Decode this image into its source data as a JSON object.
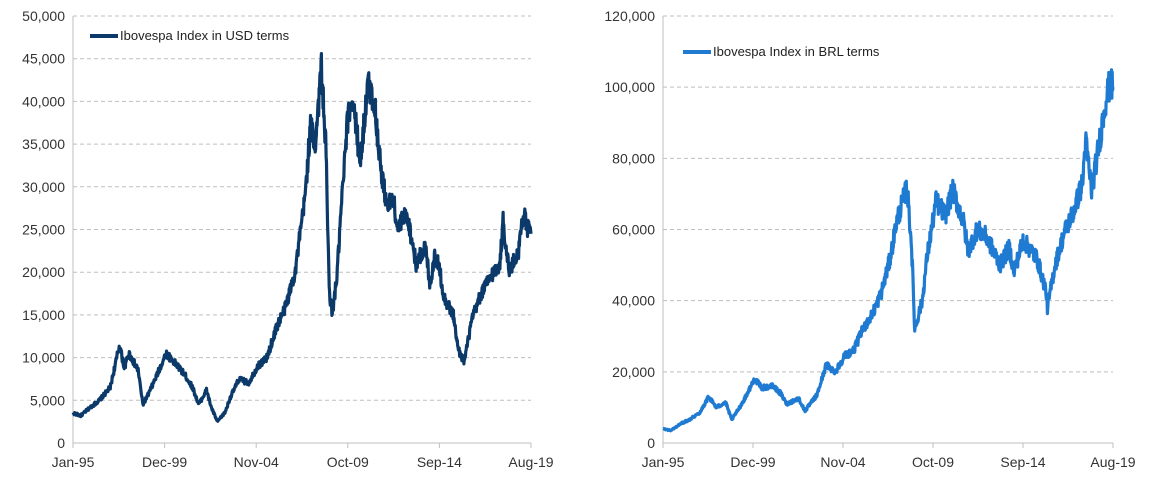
{
  "charts": [
    {
      "type": "line",
      "title": "",
      "xlabel": "",
      "ylabel": "",
      "legend_position": "top-left",
      "grid": true,
      "series_color": "#0b3a6a",
      "y_ticks": [
        "0",
        "5,000",
        "10,000",
        "15,000",
        "20,000",
        "25,000",
        "30,000",
        "35,000",
        "40,000",
        "45,000",
        "50,000"
      ],
      "x_ticks": [
        "Jan-95",
        "Dec-99",
        "Nov-04",
        "Oct-09",
        "Sep-14",
        "Aug-19"
      ],
      "ylim": [
        0,
        50000
      ],
      "series": [
        {
          "name": "Ibovespa Index in USD terms",
          "x": [
            "1995-01",
            "1995-06",
            "1996-01",
            "1996-06",
            "1997-01",
            "1997-04",
            "1997-07",
            "1997-10",
            "1998-01",
            "1998-04",
            "1998-07",
            "1998-10",
            "1999-01",
            "1999-06",
            "2000-01",
            "2000-06",
            "2001-01",
            "2001-06",
            "2001-10",
            "2002-03",
            "2002-06",
            "2002-10",
            "2003-03",
            "2003-06",
            "2003-12",
            "2004-06",
            "2004-12",
            "2005-06",
            "2005-12",
            "2006-06",
            "2006-12",
            "2007-06",
            "2007-10",
            "2008-01",
            "2008-05",
            "2008-08",
            "2008-10",
            "2008-12",
            "2009-03",
            "2009-06",
            "2009-10",
            "2010-01",
            "2010-06",
            "2010-11",
            "2011-03",
            "2011-08",
            "2011-12",
            "2012-03",
            "2012-06",
            "2012-12",
            "2013-06",
            "2013-12",
            "2014-03",
            "2014-06",
            "2014-09",
            "2014-12",
            "2015-06",
            "2015-09",
            "2016-01",
            "2016-06",
            "2016-12",
            "2017-06",
            "2017-12",
            "2018-02",
            "2018-06",
            "2018-12",
            "2019-03",
            "2019-06",
            "2019-08"
          ],
          "values": [
            3500,
            3200,
            4300,
            5000,
            6500,
            9000,
            11500,
            8800,
            10500,
            9500,
            8500,
            4500,
            5500,
            7500,
            10500,
            9500,
            8000,
            6500,
            4500,
            6200,
            4200,
            2500,
            3600,
            5200,
            7500,
            7000,
            9000,
            10000,
            13500,
            16000,
            20000,
            28000,
            37000,
            35000,
            44000,
            34000,
            18000,
            15000,
            19500,
            28000,
            38000,
            40500,
            33000,
            42000,
            40000,
            31000,
            27500,
            29000,
            25000,
            27000,
            21000,
            23000,
            18500,
            22000,
            20500,
            17000,
            15000,
            11000,
            9500,
            14500,
            17500,
            19500,
            21000,
            26000,
            20000,
            22500,
            27000,
            25000,
            24500
          ]
        }
      ]
    },
    {
      "type": "line",
      "title": "",
      "xlabel": "",
      "ylabel": "",
      "legend_position": "top-left",
      "grid": true,
      "series_color": "#1f7bd1",
      "y_ticks": [
        "0",
        "20,000",
        "40,000",
        "60,000",
        "80,000",
        "100,000",
        "120,000"
      ],
      "x_ticks": [
        "Jan-95",
        "Dec-99",
        "Nov-04",
        "Oct-09",
        "Sep-14",
        "Aug-19"
      ],
      "ylim": [
        0,
        120000
      ],
      "series": [
        {
          "name": "Ibovespa Index in BRL terms",
          "x": [
            "1995-01",
            "1995-06",
            "1996-01",
            "1996-06",
            "1997-01",
            "1997-07",
            "1997-12",
            "1998-06",
            "1998-10",
            "1999-01",
            "1999-06",
            "2000-01",
            "2000-06",
            "2001-01",
            "2001-06",
            "2001-10",
            "2002-06",
            "2002-10",
            "2003-06",
            "2003-12",
            "2004-06",
            "2004-12",
            "2005-06",
            "2005-12",
            "2006-06",
            "2006-12",
            "2007-06",
            "2007-10",
            "2008-05",
            "2008-08",
            "2008-10",
            "2009-03",
            "2009-06",
            "2009-12",
            "2010-06",
            "2010-11",
            "2011-06",
            "2011-09",
            "2012-03",
            "2012-09",
            "2013-06",
            "2013-12",
            "2014-03",
            "2014-09",
            "2015-06",
            "2015-12",
            "2016-01",
            "2016-06",
            "2016-12",
            "2017-06",
            "2017-12",
            "2018-02",
            "2018-06",
            "2018-12",
            "2019-03",
            "2019-06",
            "2019-08"
          ],
          "values": [
            4000,
            3500,
            5500,
            6500,
            8500,
            13000,
            10000,
            11500,
            6500,
            8500,
            12000,
            18000,
            15500,
            16000,
            14000,
            11000,
            12500,
            9000,
            13500,
            22000,
            20000,
            24500,
            26000,
            32000,
            36000,
            42000,
            52000,
            62000,
            72000,
            55000,
            32000,
            40000,
            52000,
            68000,
            64000,
            71000,
            62000,
            54000,
            60000,
            58000,
            50000,
            55000,
            48000,
            57000,
            52000,
            43000,
            38000,
            50000,
            59000,
            65000,
            73000,
            85000,
            71000,
            87000,
            96000,
            101000,
            100000
          ]
        }
      ]
    }
  ]
}
